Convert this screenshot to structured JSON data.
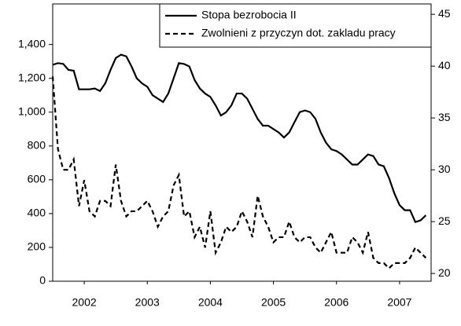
{
  "chart_data": {
    "type": "line",
    "x": [
      2002,
      2002.083,
      2002.167,
      2002.25,
      2002.333,
      2002.417,
      2002.5,
      2002.583,
      2002.667,
      2002.75,
      2002.833,
      2002.917,
      2003,
      2003.083,
      2003.167,
      2003.25,
      2003.333,
      2003.417,
      2003.5,
      2003.583,
      2003.667,
      2003.75,
      2003.833,
      2003.917,
      2004,
      2004.083,
      2004.167,
      2004.25,
      2004.333,
      2004.417,
      2004.5,
      2004.583,
      2004.667,
      2004.75,
      2004.833,
      2004.917,
      2005,
      2005.083,
      2005.167,
      2005.25,
      2005.333,
      2005.417,
      2005.5,
      2005.583,
      2005.667,
      2005.75,
      2005.833,
      2005.917,
      2006,
      2006.083,
      2006.167,
      2006.25,
      2006.333,
      2006.417,
      2006.5,
      2006.583,
      2006.667,
      2006.75,
      2006.833,
      2006.917,
      2007,
      2007.083,
      2007.167,
      2007.25,
      2007.333,
      2007.417,
      2007.5,
      2007.583,
      2007.667,
      2007.75,
      2007.833,
      2007.917
    ],
    "series": [
      {
        "name": "Stopa bezrobocia II",
        "color": "#000000",
        "dash": false,
        "values": [
          1280,
          1290,
          1285,
          1250,
          1245,
          1135,
          1135,
          1135,
          1140,
          1125,
          1170,
          1250,
          1320,
          1340,
          1330,
          1270,
          1200,
          1170,
          1150,
          1100,
          1080,
          1060,
          1110,
          1200,
          1290,
          1285,
          1270,
          1190,
          1140,
          1110,
          1090,
          1040,
          980,
          1000,
          1040,
          1110,
          1110,
          1080,
          1020,
          960,
          920,
          920,
          900,
          880,
          850,
          880,
          940,
          1000,
          1010,
          1000,
          960,
          880,
          820,
          780,
          770,
          750,
          720,
          690,
          690,
          720,
          750,
          740,
          690,
          680,
          610,
          520,
          450,
          420,
          420,
          350,
          360,
          390
        ]
      },
      {
        "name": "Zwolnieni z przyczyn dot. zakladu pracy",
        "color": "#000000",
        "dash": true,
        "axis": "y2",
        "values": [
          39,
          32,
          30,
          30,
          31,
          26.5,
          29,
          26,
          25.5,
          27,
          27,
          26.5,
          30.5,
          27,
          25.5,
          26,
          26,
          26.5,
          27,
          26,
          24.5,
          25.5,
          26,
          28.5,
          29.5,
          25.5,
          26,
          23.5,
          24.5,
          22.5,
          26,
          22,
          23,
          24.5,
          24,
          24.5,
          26,
          25,
          23.5,
          27.5,
          25.5,
          24.5,
          23,
          23.5,
          23.5,
          25,
          23.5,
          23,
          23.5,
          23.5,
          22.5,
          22,
          23,
          24,
          22,
          22,
          22,
          23.5,
          23,
          22,
          24,
          21.5,
          21,
          21,
          20.5,
          21,
          21,
          21,
          21.5,
          22.5,
          22,
          21.5
        ]
      }
    ],
    "xlim": [
      2002,
      2008
    ],
    "xticks": [
      {
        "value": 2002.5,
        "label": "2002"
      },
      {
        "value": 2003.5,
        "label": "2003"
      },
      {
        "value": 2004.5,
        "label": "2004"
      },
      {
        "value": 2005.5,
        "label": "2005"
      },
      {
        "value": 2006.5,
        "label": "2006"
      },
      {
        "value": 2007.5,
        "label": "2007"
      }
    ],
    "ylim": [
      0,
      1640
    ],
    "yticks": [
      0,
      200,
      400,
      600,
      800,
      {
        "value": 1000,
        "label": "1,000"
      },
      {
        "value": 1200,
        "label": "1,200"
      },
      {
        "value": 1400,
        "label": "1,400"
      }
    ],
    "y2lim": [
      19.25,
      46
    ],
    "y2ticks": [
      20,
      25,
      30,
      35,
      40,
      45
    ]
  }
}
